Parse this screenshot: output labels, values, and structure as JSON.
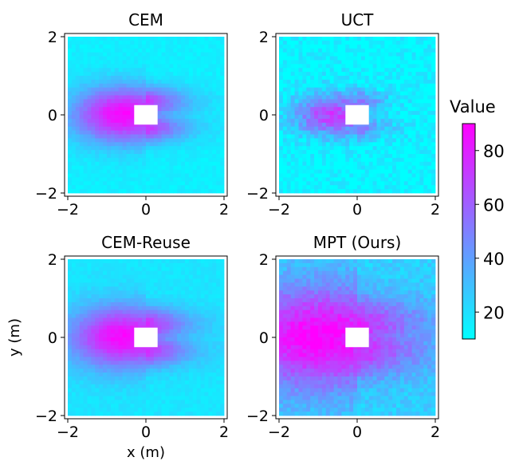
{
  "chart_data": [
    {
      "type": "heatmap",
      "title": "CEM",
      "xlabel": "",
      "ylabel": "",
      "xlim": [
        -2,
        2
      ],
      "ylim": [
        -2,
        2
      ],
      "xticks": [
        "-2",
        "0",
        "2"
      ],
      "yticks": [
        "-2",
        "0",
        "2"
      ],
      "obstacle": {
        "x": [
          -0.3,
          0.3
        ],
        "y": [
          -0.25,
          0.25
        ]
      },
      "high_value_region": {
        "center_x": -0.6,
        "center_y": 0.0,
        "peak": 88,
        "extent_x": 1.6,
        "extent_y": 0.9
      },
      "background_value": 15,
      "noise": 0.15
    },
    {
      "type": "heatmap",
      "title": "UCT",
      "xlabel": "",
      "ylabel": "",
      "xlim": [
        -2,
        2
      ],
      "ylim": [
        -2,
        2
      ],
      "xticks": [
        "-2",
        "0",
        "2"
      ],
      "yticks": [
        "-2",
        "0",
        "2"
      ],
      "obstacle": {
        "x": [
          -0.3,
          0.3
        ],
        "y": [
          -0.25,
          0.25
        ]
      },
      "high_value_region": {
        "center_x": -0.6,
        "center_y": 0.0,
        "peak": 70,
        "extent_x": 1.3,
        "extent_y": 0.7
      },
      "background_value": 12,
      "noise": 0.5
    },
    {
      "type": "heatmap",
      "title": "CEM-Reuse",
      "xlabel": "x (m)",
      "ylabel": "y (m)",
      "xlim": [
        -2,
        2
      ],
      "ylim": [
        -2,
        2
      ],
      "xticks": [
        "-2",
        "0",
        "2"
      ],
      "yticks": [
        "-2",
        "0",
        "2"
      ],
      "obstacle": {
        "x": [
          -0.3,
          0.3
        ],
        "y": [
          -0.25,
          0.25
        ]
      },
      "high_value_region": {
        "center_x": -0.6,
        "center_y": 0.0,
        "peak": 88,
        "extent_x": 1.7,
        "extent_y": 1.0
      },
      "background_value": 18,
      "noise": 0.15
    },
    {
      "type": "heatmap",
      "title": "MPT (Ours)",
      "xlabel": "",
      "ylabel": "",
      "xlim": [
        -2,
        2
      ],
      "ylim": [
        -2,
        2
      ],
      "xticks": [
        "-2",
        "0",
        "2"
      ],
      "yticks": [
        "-2",
        "0",
        "2"
      ],
      "obstacle": {
        "x": [
          -0.3,
          0.3
        ],
        "y": [
          -0.25,
          0.25
        ]
      },
      "high_value_region": {
        "center_x": -1.0,
        "center_y": 0.0,
        "peak": 90,
        "extent_x": 2.6,
        "extent_y": 1.6
      },
      "background_value": 25,
      "noise": 0.35
    }
  ],
  "colorbar": {
    "label": "Value",
    "range": [
      10,
      90
    ],
    "ticks": [
      20,
      40,
      60,
      80
    ],
    "colors": {
      "low": "#00ffff",
      "high": "#ff00ff"
    }
  }
}
